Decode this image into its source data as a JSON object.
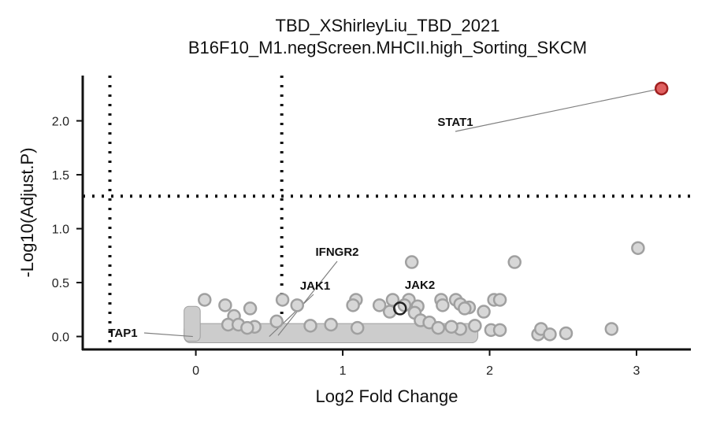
{
  "chart_data": {
    "type": "scatter",
    "title": "TBD_XShirleyLiu_TBD_2021",
    "subtitle": "B16F10_M1.negScreen.MHCII.high_Sorting_SKCM",
    "xlabel": "Log2 Fold Change",
    "ylabel": "-Log10(Adjust.P)",
    "xlim": [
      -0.77,
      3.37
    ],
    "ylim": [
      -0.12,
      2.42
    ],
    "x_ticks": [
      0,
      1,
      2,
      3
    ],
    "x_tick_labels": [
      "0",
      "1",
      "2",
      "3"
    ],
    "y_ticks": [
      0.0,
      0.5,
      1.0,
      1.5,
      2.0
    ],
    "y_tick_labels": [
      "0.0",
      "0.5",
      "1.0",
      "1.5",
      "2.0"
    ],
    "thresholds": {
      "log2fc": [
        -0.585,
        0.585
      ],
      "neg_log10_p": 1.301
    },
    "grid": false,
    "legend": "none",
    "colors": {
      "point_fill": "#d7d7d7",
      "point_stroke": "#a0a0a0",
      "cloud": "#cccccc",
      "significant_fill": "#e06060",
      "significant_stroke": "#a02020",
      "highlight_stroke": "#222222",
      "threshold_line": "#111111",
      "label_line": "#808080"
    },
    "points": [
      {
        "x": 0.06,
        "y": 0.34
      },
      {
        "x": 0.2,
        "y": 0.29
      },
      {
        "x": 0.26,
        "y": 0.19
      },
      {
        "x": 0.37,
        "y": 0.26
      },
      {
        "x": 0.59,
        "y": 0.34
      },
      {
        "x": 0.69,
        "y": 0.29
      },
      {
        "x": 0.55,
        "y": 0.14
      },
      {
        "x": 0.22,
        "y": 0.11
      },
      {
        "x": 0.29,
        "y": 0.11
      },
      {
        "x": 0.4,
        "y": 0.09
      },
      {
        "x": 0.78,
        "y": 0.1
      },
      {
        "x": 0.92,
        "y": 0.11
      },
      {
        "x": 1.09,
        "y": 0.34
      },
      {
        "x": 1.07,
        "y": 0.29
      },
      {
        "x": 1.25,
        "y": 0.29
      },
      {
        "x": 1.34,
        "y": 0.34
      },
      {
        "x": 1.45,
        "y": 0.34
      },
      {
        "x": 1.47,
        "y": 0.69
      },
      {
        "x": 1.32,
        "y": 0.23
      },
      {
        "x": 1.42,
        "y": 0.29
      },
      {
        "x": 1.51,
        "y": 0.28
      },
      {
        "x": 1.49,
        "y": 0.22
      },
      {
        "x": 1.53,
        "y": 0.15
      },
      {
        "x": 1.59,
        "y": 0.13
      },
      {
        "x": 1.67,
        "y": 0.34
      },
      {
        "x": 1.68,
        "y": 0.29
      },
      {
        "x": 1.77,
        "y": 0.34
      },
      {
        "x": 1.8,
        "y": 0.3
      },
      {
        "x": 1.86,
        "y": 0.27
      },
      {
        "x": 1.83,
        "y": 0.26
      },
      {
        "x": 1.96,
        "y": 0.23
      },
      {
        "x": 2.03,
        "y": 0.34
      },
      {
        "x": 2.07,
        "y": 0.34
      },
      {
        "x": 2.17,
        "y": 0.69
      },
      {
        "x": 1.9,
        "y": 0.1
      },
      {
        "x": 2.01,
        "y": 0.06
      },
      {
        "x": 2.07,
        "y": 0.06
      },
      {
        "x": 2.33,
        "y": 0.02
      },
      {
        "x": 2.35,
        "y": 0.07
      },
      {
        "x": 2.41,
        "y": 0.02
      },
      {
        "x": 2.52,
        "y": 0.03
      },
      {
        "x": 2.83,
        "y": 0.07
      },
      {
        "x": 3.01,
        "y": 0.82
      },
      {
        "x": 1.8,
        "y": 0.07
      },
      {
        "x": 1.74,
        "y": 0.09
      },
      {
        "x": 1.65,
        "y": 0.08
      },
      {
        "x": 1.1,
        "y": 0.08
      },
      {
        "x": 0.35,
        "y": 0.08
      }
    ],
    "significant_points": [
      {
        "x": 3.17,
        "y": 2.3
      }
    ],
    "highlighted_points": [
      {
        "x": 1.39,
        "y": 0.26
      }
    ],
    "annotations": [
      {
        "label": "STAT1",
        "x": 3.17,
        "y": 2.3
      },
      {
        "label": "IFNGR2",
        "x": 0.56,
        "y": 0.01
      },
      {
        "label": "JAK1",
        "x": 0.5,
        "y": 0.0
      },
      {
        "label": "JAK2",
        "x": 1.39,
        "y": 0.26
      },
      {
        "label": "TAP1",
        "x": -0.02,
        "y": 0.0
      }
    ]
  }
}
